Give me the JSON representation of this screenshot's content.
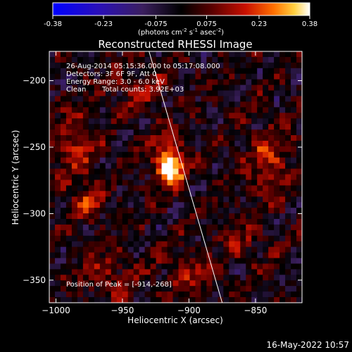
{
  "chart_data": {
    "type": "heatmap",
    "title": "Reconstructed RHESSI Image",
    "xlabel": "Heliocentric X (arcsec)",
    "ylabel": "Heliocentric Y (arcsec)",
    "xlim": [
      -1005,
      -815
    ],
    "ylim": [
      -367,
      -178
    ],
    "x_ticks": [
      -1000,
      -950,
      -900,
      -850
    ],
    "y_ticks": [
      -200,
      -250,
      -300,
      -350
    ],
    "colorbar": {
      "min": -0.38,
      "max": 0.38,
      "ticks": [
        "-0.38",
        "-0.23",
        "-0.075",
        "0.075",
        "0.23",
        "0.38"
      ],
      "unit_prefix": "(photons cm",
      "unit_exp1": "-2",
      "unit_mid1": " s",
      "unit_exp2": "-1",
      "unit_mid2": " asec",
      "unit_exp3": "-2",
      "unit_suffix": ")"
    },
    "annotations": {
      "time_range": "26-Aug-2014 05:15:36.000 to 05:17:08.000",
      "detectors": "Detectors: 3F 6F 9F, Att 0",
      "energy": "Energy Range: 3.0 - 6.0 keV",
      "method": "Clean",
      "counts": "Total counts: 3.92E+03",
      "peak": "Position of Peak = [-914,-268]"
    },
    "peak": {
      "x": -914,
      "y": -268,
      "value": 0.38
    },
    "sources": [
      {
        "x": -914,
        "y": -268,
        "amp": 0.38,
        "sx": 6,
        "sy": 7
      },
      {
        "x": -916,
        "y": -255,
        "amp": 0.17,
        "sx": 10,
        "sy": 14
      },
      {
        "x": -975,
        "y": -290,
        "amp": 0.19,
        "sx": 8,
        "sy": 9
      },
      {
        "x": -985,
        "y": -250,
        "amp": 0.14,
        "sx": 12,
        "sy": 20
      },
      {
        "x": -840,
        "y": -260,
        "amp": 0.16,
        "sx": 12,
        "sy": 18
      },
      {
        "x": -900,
        "y": -345,
        "amp": 0.13,
        "sx": 14,
        "sy": 10
      },
      {
        "x": -960,
        "y": -345,
        "amp": 0.11,
        "sx": 15,
        "sy": 12
      },
      {
        "x": -940,
        "y": -205,
        "amp": 0.1,
        "sx": 15,
        "sy": 12
      },
      {
        "x": -860,
        "y": -320,
        "amp": 0.1,
        "sx": 12,
        "sy": 12
      }
    ],
    "limb": [
      {
        "x": -930,
        "y": -178
      },
      {
        "x": -875,
        "y": -367
      }
    ],
    "grid": false
  },
  "footer": {
    "date": "16-May-2022 10:57"
  }
}
